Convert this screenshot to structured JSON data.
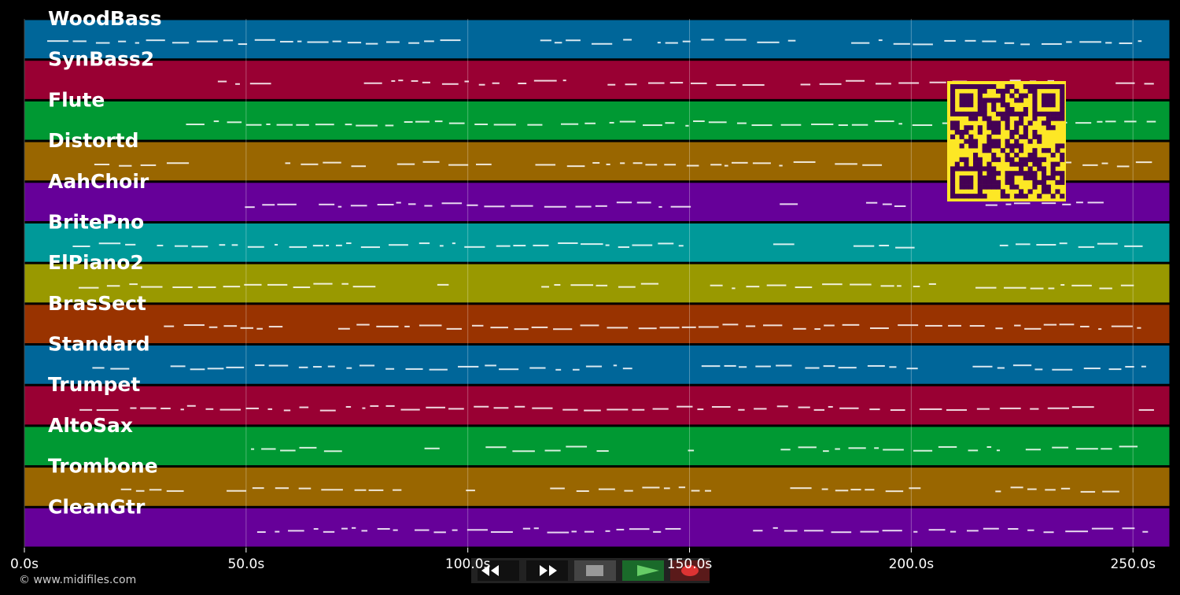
{
  "tracks": [
    {
      "name": "WoodBass",
      "color": "#006699"
    },
    {
      "name": "SynBass2",
      "color": "#990033"
    },
    {
      "name": "Flute",
      "color": "#009933"
    },
    {
      "name": "Distortd",
      "color": "#996600"
    },
    {
      "name": "AahChoir",
      "color": "#660099"
    },
    {
      "name": "BritePno",
      "color": "#009999"
    },
    {
      "name": "ElPiano2",
      "color": "#999900"
    },
    {
      "name": "BrasSect",
      "color": "#993300"
    },
    {
      "name": "Standard",
      "color": "#006699"
    },
    {
      "name": "Trumpet",
      "color": "#990033"
    },
    {
      "name": "AltoSax",
      "color": "#009933"
    },
    {
      "name": "Trombone",
      "color": "#996600"
    },
    {
      "name": "CleanGtr",
      "color": "#660099"
    }
  ],
  "time_axis": {
    "range": [
      0,
      258.3
    ],
    "ticks": [
      {
        "value": 0,
        "label": "0.0s"
      },
      {
        "value": 50,
        "label": "50.0s"
      },
      {
        "value": 100,
        "label": "100.0s"
      },
      {
        "value": 150,
        "label": "150.0s"
      },
      {
        "value": 200,
        "label": "200.0s"
      },
      {
        "value": 250,
        "label": "250.0s"
      }
    ]
  },
  "footer": {
    "copyright": "© www.midifiles.com"
  }
}
